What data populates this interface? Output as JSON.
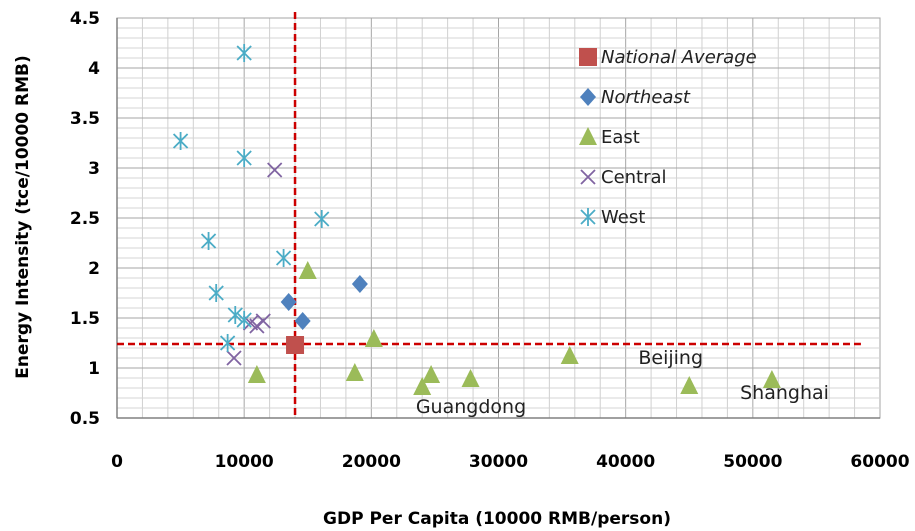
{
  "chart_data": {
    "type": "scatter",
    "xlabel": "GDP Per Capita (10000 RMB/person)",
    "ylabel": "Energy Intensity (tce/10000 RMB)",
    "xlim": [
      0,
      60000
    ],
    "ylim": [
      0.5,
      4.5
    ],
    "x_ticks": [
      "0",
      "10000",
      "20000",
      "30000",
      "40000",
      "50000",
      "60000"
    ],
    "y_ticks": [
      "0.5",
      "1",
      "1.5",
      "2",
      "2.5",
      "3",
      "3.5",
      "4",
      "4.5"
    ],
    "grid": true,
    "legend_position": "top-right",
    "reference_lines": {
      "x": 14000,
      "y": 1.24,
      "color": "#cc0000",
      "style": "dashed"
    },
    "series": [
      {
        "name": "National Average",
        "marker": "square",
        "color": "#c0504d",
        "points": [
          {
            "x": 14000,
            "y": 1.23
          }
        ]
      },
      {
        "name": "Northeast",
        "marker": "diamond",
        "color": "#4f81bd",
        "points": [
          {
            "x": 13500,
            "y": 1.66
          },
          {
            "x": 14600,
            "y": 1.47
          },
          {
            "x": 19100,
            "y": 1.84
          }
        ]
      },
      {
        "name": "East",
        "marker": "triangle",
        "color": "#9bbb59",
        "points": [
          {
            "x": 11000,
            "y": 0.93
          },
          {
            "x": 15000,
            "y": 1.97
          },
          {
            "x": 18700,
            "y": 0.95
          },
          {
            "x": 20200,
            "y": 1.29
          },
          {
            "x": 24000,
            "y": 0.81
          },
          {
            "x": 24700,
            "y": 0.93
          },
          {
            "x": 27800,
            "y": 0.89
          },
          {
            "x": 35600,
            "y": 1.12
          },
          {
            "x": 45000,
            "y": 0.82
          },
          {
            "x": 51500,
            "y": 0.88
          }
        ]
      },
      {
        "name": "Central",
        "marker": "x",
        "color": "#8064a2",
        "points": [
          {
            "x": 9200,
            "y": 1.1
          },
          {
            "x": 10500,
            "y": 1.45
          },
          {
            "x": 11000,
            "y": 1.42
          },
          {
            "x": 11500,
            "y": 1.47
          },
          {
            "x": 12400,
            "y": 2.98
          }
        ]
      },
      {
        "name": "West",
        "marker": "asterisk",
        "color": "#4bacc6",
        "points": [
          {
            "x": 5000,
            "y": 3.27
          },
          {
            "x": 7200,
            "y": 2.27
          },
          {
            "x": 7800,
            "y": 1.75
          },
          {
            "x": 8700,
            "y": 1.25
          },
          {
            "x": 9300,
            "y": 1.53
          },
          {
            "x": 10000,
            "y": 1.48
          },
          {
            "x": 10000,
            "y": 3.1
          },
          {
            "x": 10000,
            "y": 4.15
          },
          {
            "x": 13100,
            "y": 2.1
          },
          {
            "x": 16100,
            "y": 2.49
          }
        ]
      }
    ],
    "annotations": [
      {
        "text": "Beijing",
        "x": 41000,
        "y": 1.04
      },
      {
        "text": "Shanghai",
        "x": 49000,
        "y": 0.69
      },
      {
        "text": "Guangdong",
        "x": 23500,
        "y": 0.55
      }
    ]
  }
}
